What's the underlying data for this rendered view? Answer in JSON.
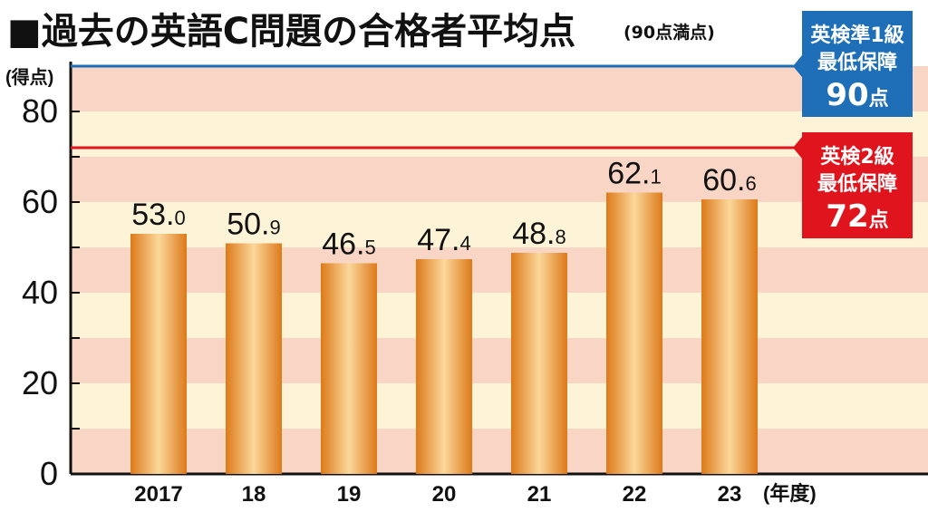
{
  "title": "■過去の英語C問題の合格者平均点",
  "subtitle": "(90点満点)",
  "colors": {
    "bar_dark": "#dd7a1a",
    "bar_light": "#fbd79a",
    "band_pink": "#f9d5c6",
    "band_cream": "#fdf4d8",
    "ref1": "#1f6fb8",
    "ref2": "#e0141c"
  },
  "chart_data": {
    "type": "bar",
    "title": "■過去の英語C問題の合格者平均点",
    "subtitle": "(90点満点)",
    "xlabel": "(年度)",
    "ylabel": "(得点)",
    "categories": [
      "2017",
      "18",
      "19",
      "20",
      "21",
      "22",
      "23"
    ],
    "values": [
      53.0,
      50.9,
      46.5,
      47.4,
      48.8,
      62.1,
      60.6
    ],
    "value_labels": [
      {
        "int": "53.",
        "dec": "0"
      },
      {
        "int": "50.",
        "dec": "9"
      },
      {
        "int": "46.",
        "dec": "5"
      },
      {
        "int": "47.",
        "dec": "4"
      },
      {
        "int": "48.",
        "dec": "8"
      },
      {
        "int": "62.",
        "dec": "1"
      },
      {
        "int": "60.",
        "dec": "6"
      }
    ],
    "y_ticks": [
      "0",
      "20",
      "40",
      "60",
      "80"
    ],
    "ylim": [
      0,
      90
    ],
    "grid": false,
    "reference_lines": [
      {
        "value": 90,
        "line1": "英検準1級",
        "line2": "最低保障",
        "num": "90",
        "unit": "点",
        "color": "#1f6fb8"
      },
      {
        "value": 72,
        "line1": "英検2級",
        "line2": "最低保障",
        "num": "72",
        "unit": "点",
        "color": "#e0141c"
      }
    ]
  }
}
